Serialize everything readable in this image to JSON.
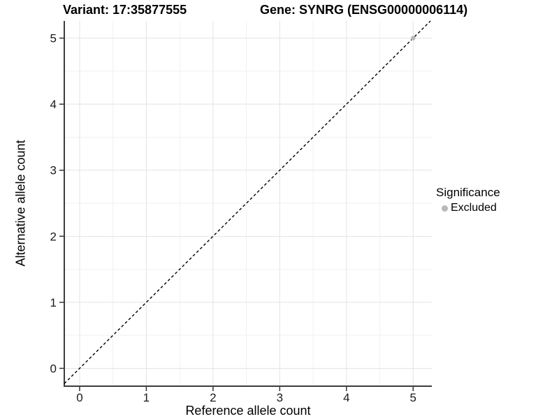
{
  "chart_data": {
    "type": "scatter",
    "title_left": "Variant: 17:35877555",
    "title_right": "Gene: SYNRG (ENSG00000006114)",
    "xlabel": "Reference allele count",
    "ylabel": "Alternative allele count",
    "xlim": [
      -0.23,
      5.28
    ],
    "ylim": [
      -0.27,
      5.26
    ],
    "x_ticks": [
      0,
      1,
      2,
      3,
      4,
      5
    ],
    "y_ticks": [
      0,
      1,
      2,
      3,
      4,
      5
    ],
    "x_minor_ticks": [
      0.5,
      1.5,
      2.5,
      3.5,
      4.5
    ],
    "y_minor_ticks": [
      0.5,
      1.5,
      2.5,
      3.5,
      4.5
    ],
    "grid": "major+minor",
    "reference_line": {
      "type": "identity",
      "slope": 1,
      "intercept": 0,
      "style": "dashed",
      "color": "#000000"
    },
    "series": [
      {
        "name": "Excluded",
        "marker": "circle",
        "color": "#b8b8b8",
        "points": [
          [
            5,
            5
          ]
        ]
      }
    ],
    "legend": {
      "title": "Significance",
      "position": "right",
      "items": [
        {
          "label": "Excluded",
          "color": "#b8b8b8"
        }
      ]
    },
    "colors": {
      "background": "#ffffff",
      "grid_major": "#e3e3e3",
      "grid_minor": "#f1f1f1",
      "axis_line": "#3d3d3d",
      "tick_mark": "#333333",
      "tick_text": "#1a1a1a"
    }
  }
}
